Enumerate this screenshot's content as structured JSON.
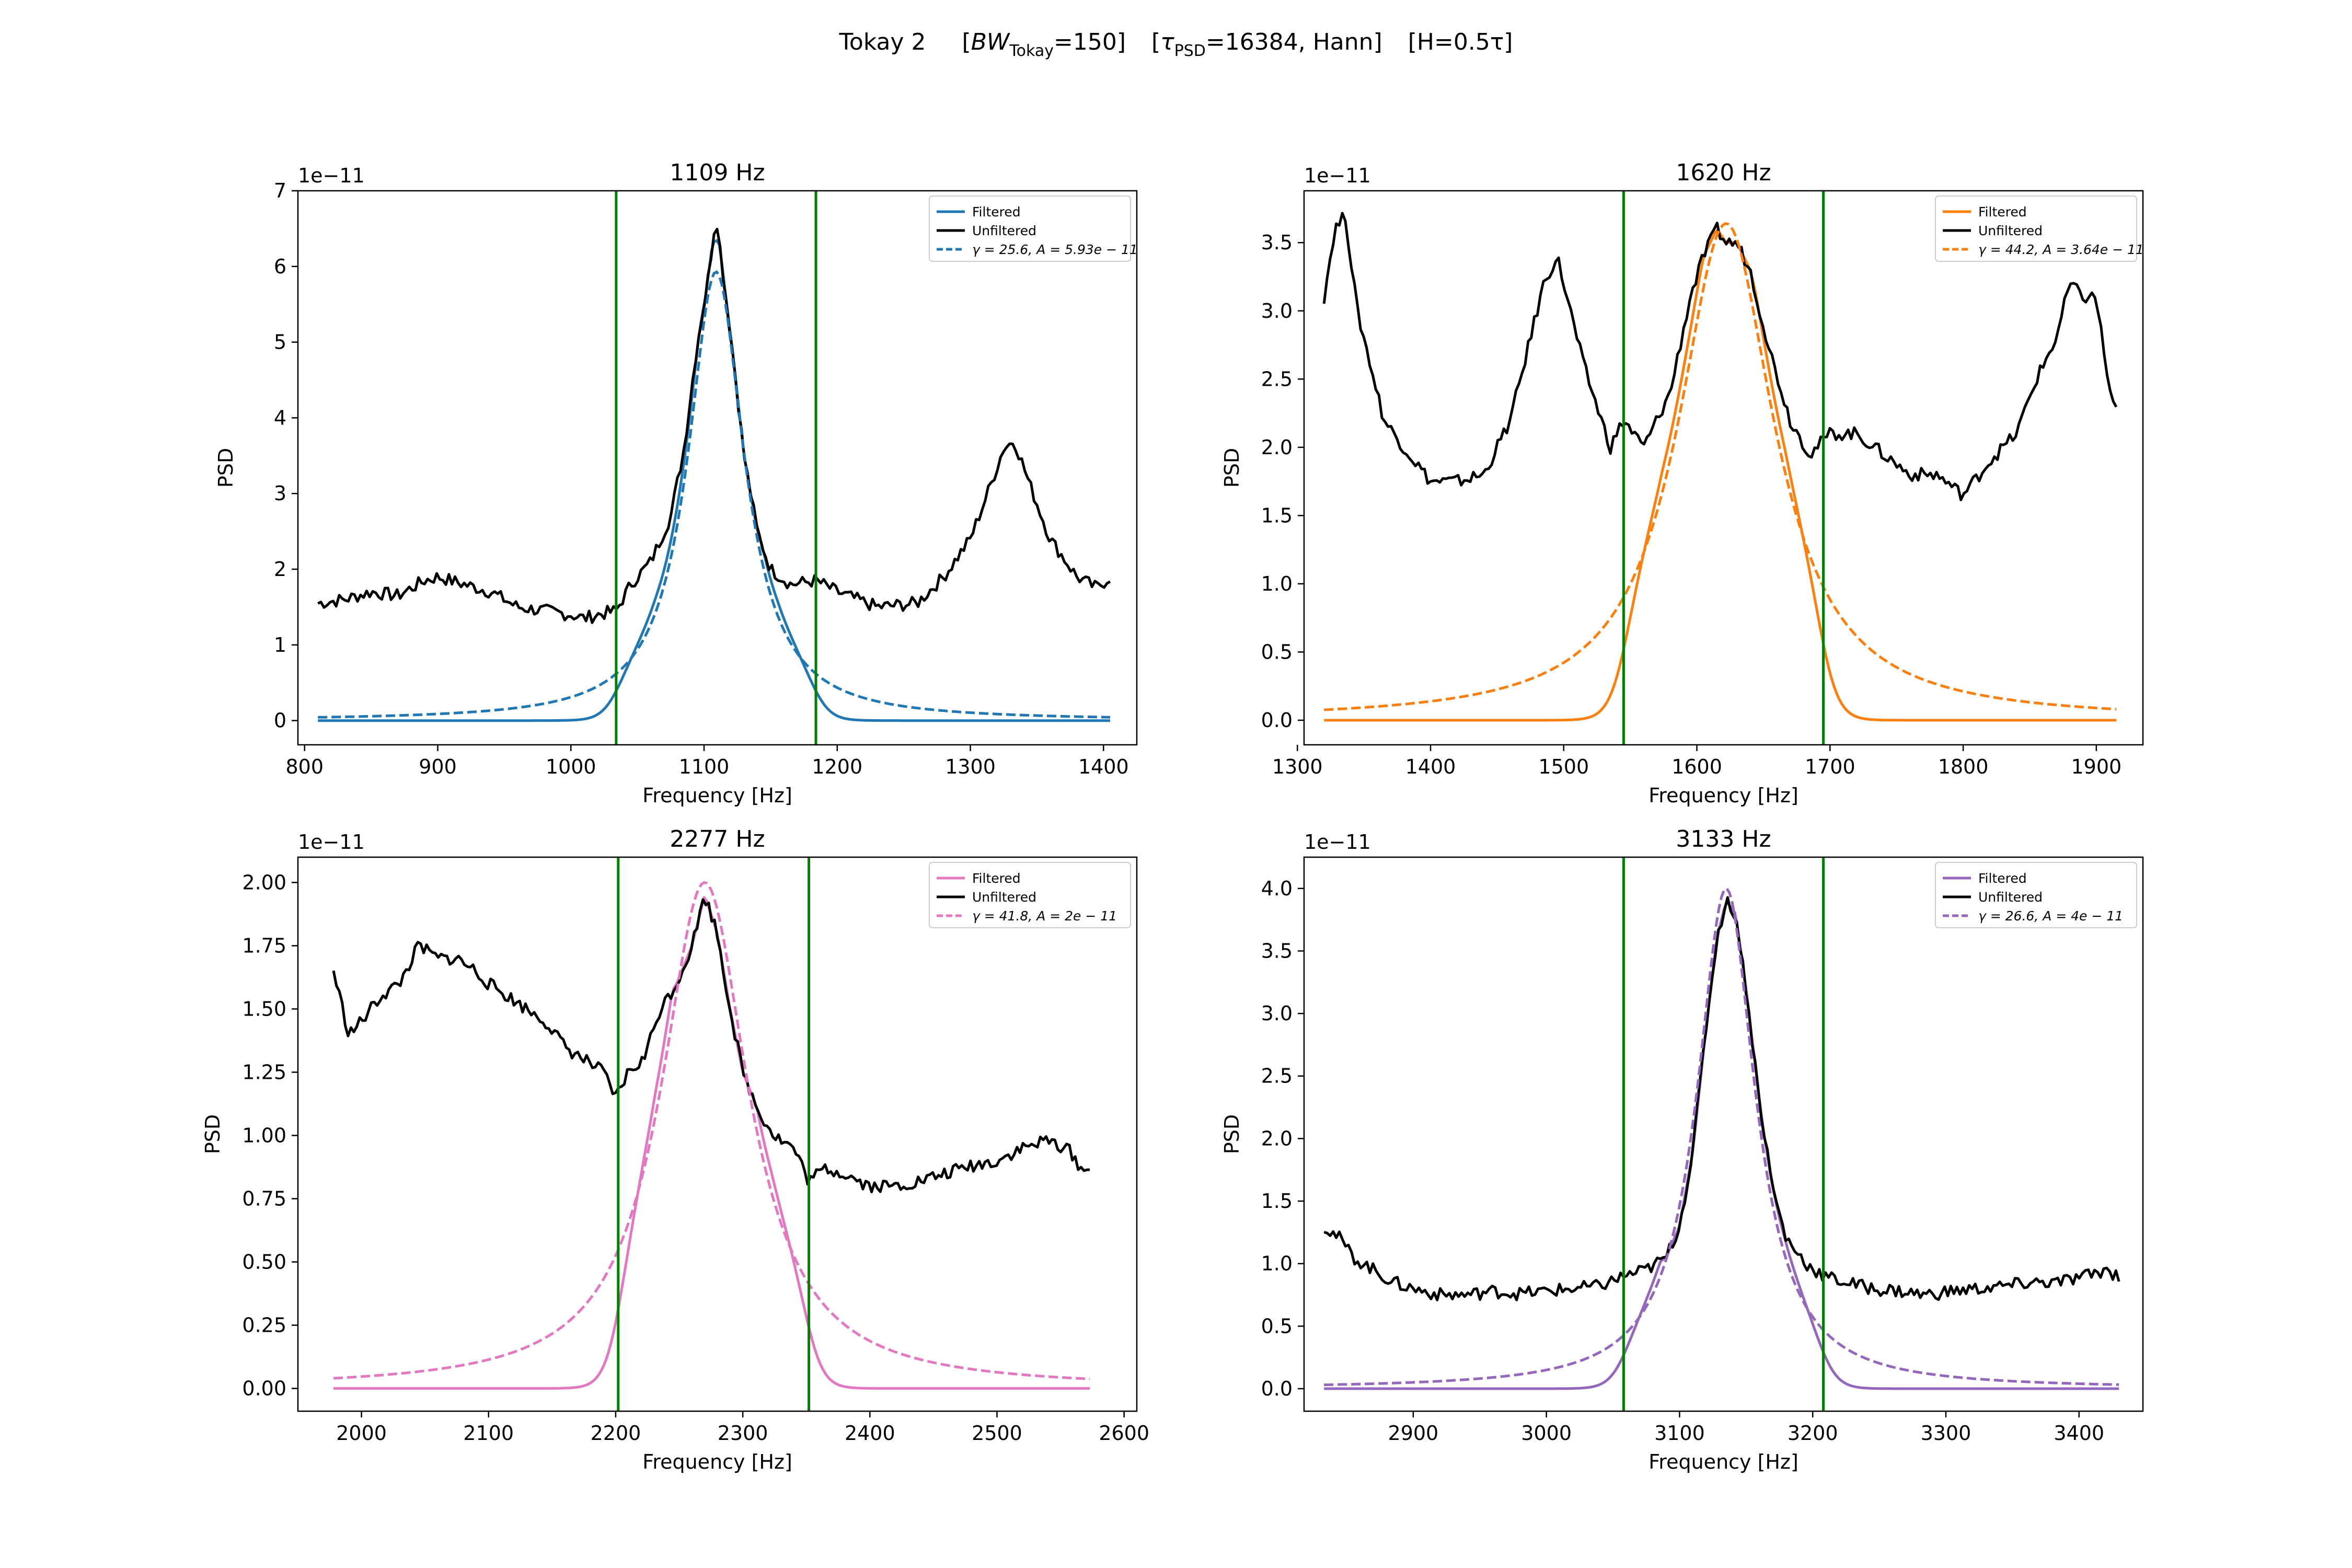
{
  "suptitle": {
    "prefix": "Tokay 2",
    "bw_open": "[",
    "bw_symbol": "BW",
    "bw_sub": "Tokay",
    "bw_value": "=150]",
    "tau_open": "[",
    "tau_symbol": "τ",
    "tau_sub": "PSD",
    "tau_value": "=16384, Hann]",
    "h_text": "[H=0.5τ]"
  },
  "colors": {
    "unfiltered": "#000000",
    "bandline": "#007f00",
    "axes": "#000000"
  },
  "chart_data": [
    {
      "type": "line",
      "title": "1109 Hz",
      "xlabel": "Frequency [Hz]",
      "ylabel": "PSD",
      "offset_text": "1e−11",
      "xlim": [
        795,
        1425
      ],
      "ylim": [
        -0.32,
        7.0
      ],
      "xticks": [
        800,
        900,
        1000,
        1100,
        1200,
        1300,
        1400
      ],
      "yticks": [
        0,
        1,
        2,
        3,
        4,
        5,
        6,
        7
      ],
      "ytick_labels": [
        "0",
        "1",
        "2",
        "3",
        "4",
        "5",
        "6",
        "7"
      ],
      "color": "#1f77b4",
      "f0": 1109,
      "gamma": 25.6,
      "A": 5.93,
      "band": [
        1034,
        1184
      ],
      "filter_edge": 35,
      "filter_shape_x": [
        900,
        1000,
        1020,
        1034,
        1060,
        1080,
        1109,
        1140,
        1160,
        1184,
        1200,
        1250
      ],
      "x_range": [
        810,
        1405
      ],
      "unfiltered": {
        "x": [
          810,
          830,
          850,
          870,
          890,
          900,
          920,
          940,
          960,
          980,
          1000,
          1010,
          1020,
          1034,
          1045,
          1060,
          1075,
          1085,
          1095,
          1102,
          1109,
          1115,
          1122,
          1130,
          1140,
          1150,
          1165,
          1184,
          1200,
          1230,
          1260,
          1280,
          1300,
          1315,
          1325,
          1333,
          1345,
          1360,
          1380,
          1395,
          1405
        ],
        "y": [
          1.55,
          1.6,
          1.7,
          1.65,
          1.85,
          1.9,
          1.8,
          1.7,
          1.5,
          1.45,
          1.4,
          1.35,
          1.4,
          1.45,
          1.8,
          2.1,
          2.7,
          3.6,
          5.0,
          5.7,
          6.7,
          5.8,
          4.8,
          3.5,
          2.5,
          2.0,
          1.8,
          1.85,
          1.7,
          1.5,
          1.55,
          1.9,
          2.4,
          3.1,
          3.6,
          3.7,
          3.1,
          2.4,
          1.9,
          1.75,
          1.9
        ]
      },
      "legend": [
        "Filtered",
        "Unfiltered",
        "γ = 25.6, A = 5.93e − 11"
      ]
    },
    {
      "type": "line",
      "title": "1620 Hz",
      "xlabel": "Frequency [Hz]",
      "ylabel": "PSD",
      "offset_text": "1e−11",
      "xlim": [
        1305,
        1935
      ],
      "ylim": [
        -0.18,
        3.88
      ],
      "xticks": [
        1300,
        1400,
        1500,
        1600,
        1700,
        1800,
        1900
      ],
      "yticks": [
        0.0,
        0.5,
        1.0,
        1.5,
        2.0,
        2.5,
        3.0,
        3.5
      ],
      "ytick_labels": [
        "0.0",
        "0.5",
        "1.0",
        "1.5",
        "2.0",
        "2.5",
        "3.0",
        "3.5"
      ],
      "color": "#ff7f0e",
      "f0": 1622,
      "gamma": 44.2,
      "A": 3.64,
      "band": [
        1545,
        1695
      ],
      "x_range": [
        1320,
        1915
      ],
      "unfiltered": {
        "x": [
          1320,
          1328,
          1336,
          1345,
          1355,
          1365,
          1380,
          1400,
          1420,
          1440,
          1460,
          1475,
          1485,
          1495,
          1505,
          1515,
          1525,
          1535,
          1545,
          1560,
          1580,
          1595,
          1605,
          1615,
          1622,
          1630,
          1640,
          1655,
          1670,
          1685,
          1700,
          1720,
          1740,
          1760,
          1780,
          1800,
          1820,
          1840,
          1855,
          1870,
          1880,
          1890,
          1900,
          1910,
          1915
        ],
        "y": [
          3.1,
          3.6,
          3.7,
          3.0,
          2.6,
          2.2,
          2.0,
          1.75,
          1.75,
          1.8,
          2.2,
          2.8,
          3.2,
          3.4,
          3.0,
          2.6,
          2.3,
          2.0,
          2.2,
          2.0,
          2.4,
          3.1,
          3.4,
          3.6,
          3.5,
          3.5,
          3.3,
          2.7,
          2.2,
          1.95,
          2.1,
          2.1,
          1.95,
          1.8,
          1.8,
          1.65,
          1.9,
          2.1,
          2.5,
          2.8,
          3.2,
          3.1,
          3.1,
          2.4,
          2.3
        ]
      },
      "legend": [
        "Filtered",
        "Unfiltered",
        "γ = 44.2, A = 3.64e − 11"
      ]
    },
    {
      "type": "line",
      "title": "2277 Hz",
      "xlabel": "Frequency [Hz]",
      "ylabel": "PSD",
      "offset_text": "1e−11",
      "xlim": [
        1950,
        2610
      ],
      "ylim": [
        -0.09,
        2.1
      ],
      "xticks": [
        2000,
        2100,
        2200,
        2300,
        2400,
        2500,
        2600
      ],
      "yticks": [
        0.0,
        0.25,
        0.5,
        0.75,
        1.0,
        1.25,
        1.5,
        1.75,
        2.0
      ],
      "ytick_labels": [
        "0.00",
        "0.25",
        "0.50",
        "0.75",
        "1.00",
        "1.25",
        "1.50",
        "1.75",
        "2.00"
      ],
      "color": "#e377c2",
      "f0": 2270,
      "gamma": 41.8,
      "A": 2.0,
      "band": [
        2202,
        2352
      ],
      "x_range": [
        1978,
        2573
      ],
      "unfiltered": {
        "x": [
          1978,
          1990,
          2000,
          2015,
          2030,
          2045,
          2060,
          2075,
          2090,
          2100,
          2115,
          2130,
          2145,
          2160,
          2175,
          2190,
          2200,
          2210,
          2222,
          2235,
          2248,
          2260,
          2270,
          2280,
          2290,
          2300,
          2312,
          2325,
          2340,
          2352,
          2365,
          2380,
          2400,
          2420,
          2440,
          2460,
          2480,
          2500,
          2520,
          2540,
          2555,
          2565,
          2573
        ],
        "y": [
          1.65,
          1.4,
          1.45,
          1.55,
          1.6,
          1.75,
          1.7,
          1.7,
          1.65,
          1.6,
          1.55,
          1.5,
          1.45,
          1.35,
          1.3,
          1.25,
          1.15,
          1.25,
          1.3,
          1.5,
          1.6,
          1.75,
          1.95,
          1.8,
          1.5,
          1.25,
          1.1,
          1.0,
          0.95,
          0.82,
          0.87,
          0.85,
          0.8,
          0.8,
          0.82,
          0.85,
          0.88,
          0.9,
          0.95,
          0.98,
          0.95,
          0.88,
          0.85
        ]
      },
      "legend": [
        "Filtered",
        "Unfiltered",
        "γ = 41.8, A = 2e − 11"
      ]
    },
    {
      "type": "line",
      "title": "3133 Hz",
      "xlabel": "Frequency [Hz]",
      "ylabel": "PSD",
      "offset_text": "1e−11",
      "xlim": [
        2818,
        3448
      ],
      "ylim": [
        -0.18,
        4.25
      ],
      "xticks": [
        2900,
        3000,
        3100,
        3200,
        3300,
        3400
      ],
      "yticks": [
        0.0,
        0.5,
        1.0,
        1.5,
        2.0,
        2.5,
        3.0,
        3.5,
        4.0
      ],
      "ytick_labels": [
        "0.0",
        "0.5",
        "1.0",
        "1.5",
        "2.0",
        "2.5",
        "3.0",
        "3.5",
        "4.0"
      ],
      "color": "#9467bd",
      "f0": 3135,
      "gamma": 26.6,
      "A": 4.0,
      "band": [
        3058,
        3208
      ],
      "x_range": [
        2833,
        3430
      ],
      "unfiltered": {
        "x": [
          2833,
          2845,
          2855,
          2870,
          2885,
          2900,
          2920,
          2940,
          2960,
          2980,
          3000,
          3020,
          3040,
          3058,
          3075,
          3090,
          3100,
          3110,
          3120,
          3128,
          3135,
          3142,
          3150,
          3160,
          3170,
          3180,
          3195,
          3208,
          3225,
          3245,
          3265,
          3285,
          3305,
          3325,
          3345,
          3365,
          3385,
          3405,
          3420,
          3430
        ],
        "y": [
          1.3,
          1.2,
          1.05,
          0.95,
          0.85,
          0.8,
          0.75,
          0.75,
          0.78,
          0.76,
          0.78,
          0.8,
          0.82,
          0.9,
          0.95,
          1.05,
          1.3,
          1.9,
          2.9,
          3.6,
          3.9,
          3.8,
          3.2,
          2.3,
          1.6,
          1.2,
          1.0,
          0.9,
          0.85,
          0.8,
          0.78,
          0.75,
          0.78,
          0.8,
          0.82,
          0.85,
          0.85,
          0.9,
          0.95,
          0.9
        ]
      },
      "legend": [
        "Filtered",
        "Unfiltered",
        "γ = 26.6, A = 4e − 11"
      ]
    }
  ]
}
